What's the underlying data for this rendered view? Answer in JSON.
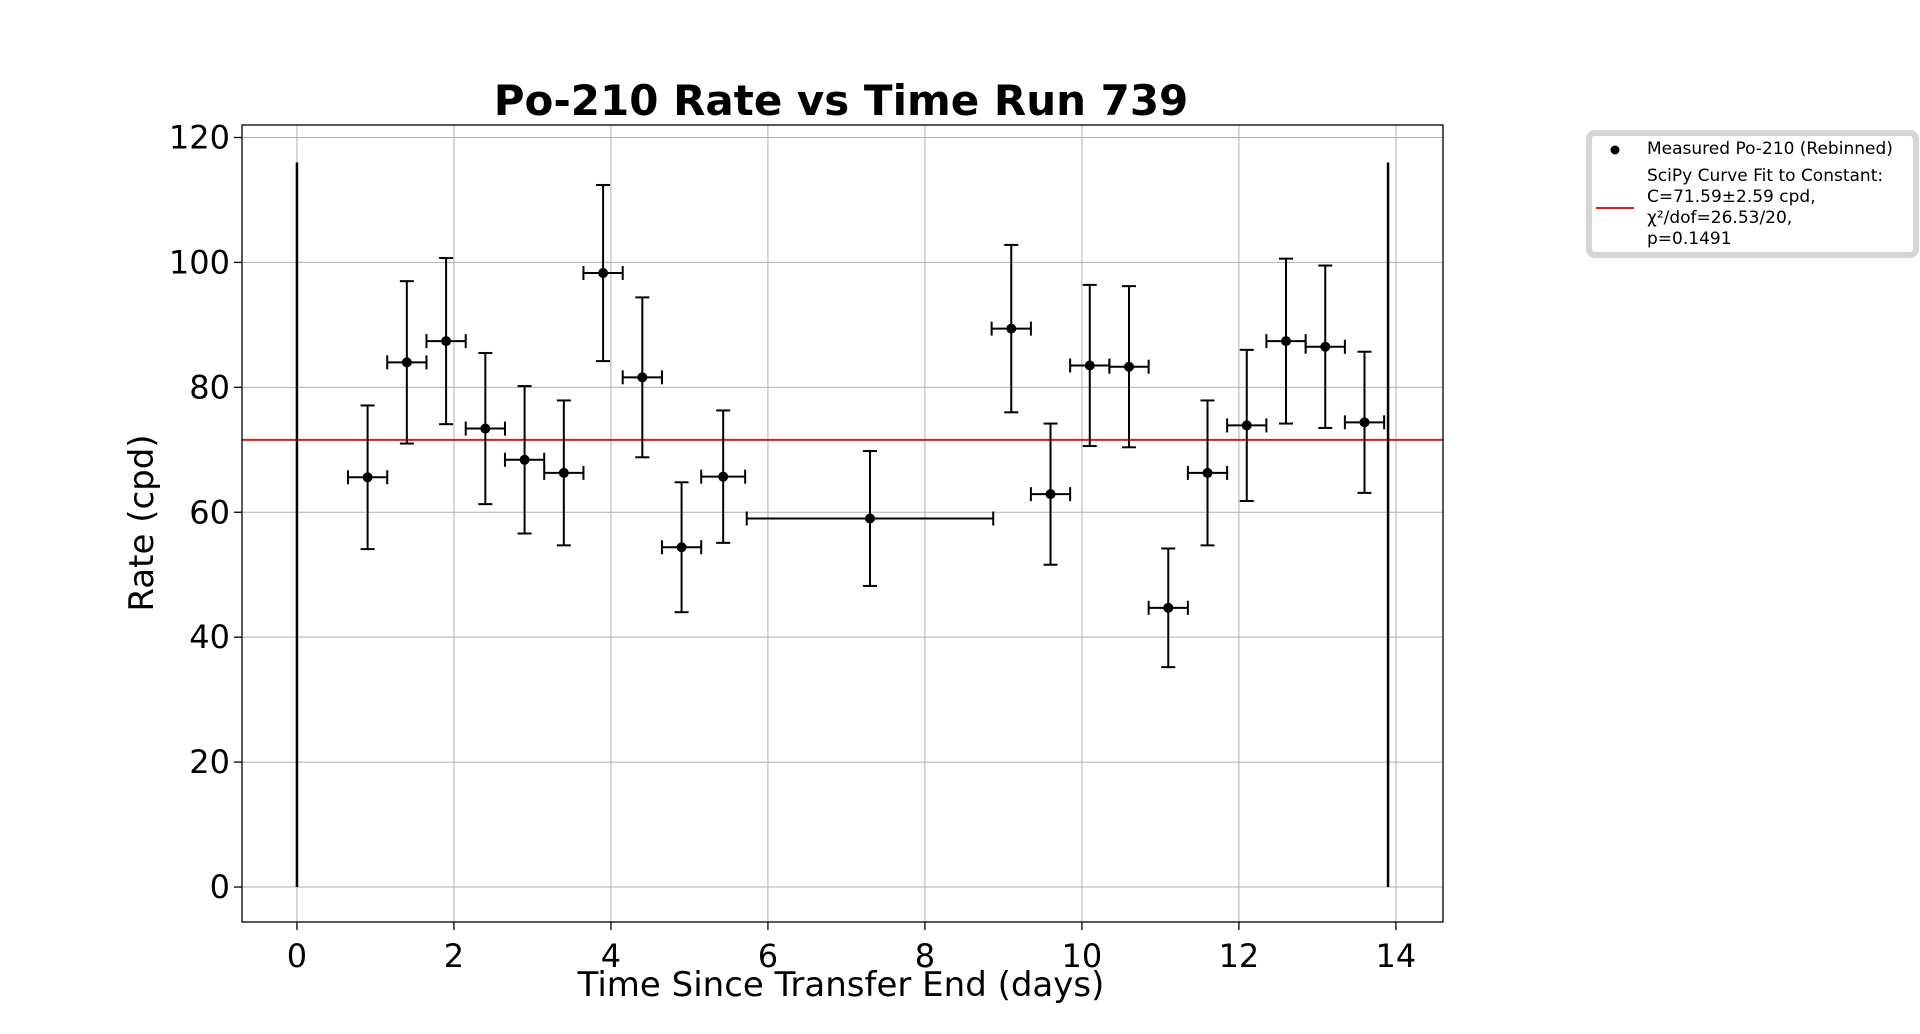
{
  "chart_data": {
    "type": "scatter",
    "title": "Po-210 Rate vs Time Run 739",
    "xlabel": "Time Since Transfer End (days)",
    "ylabel": "Rate (cpd)",
    "xlim": [
      -0.7,
      14.6
    ],
    "ylim": [
      -5.6,
      122
    ],
    "xticks": [
      0,
      2,
      4,
      6,
      8,
      10,
      12,
      14
    ],
    "yticks": [
      0,
      20,
      40,
      60,
      80,
      100,
      120
    ],
    "grid": true,
    "legend_position": "outside-top-right",
    "series": [
      {
        "name": "Measured Po-210 (Rebinned)",
        "kind": "errorbar",
        "color": "#000000",
        "points": [
          {
            "x": 0.9,
            "y": 65.6,
            "xerr": 0.25,
            "yerr": 11.5
          },
          {
            "x": 1.4,
            "y": 84.0,
            "xerr": 0.25,
            "yerr": 13.0
          },
          {
            "x": 1.9,
            "y": 87.4,
            "xerr": 0.25,
            "yerr": 13.3
          },
          {
            "x": 2.4,
            "y": 73.4,
            "xerr": 0.25,
            "yerr": 12.1
          },
          {
            "x": 2.9,
            "y": 68.4,
            "xerr": 0.25,
            "yerr": 11.8
          },
          {
            "x": 3.4,
            "y": 66.3,
            "xerr": 0.25,
            "yerr": 11.6
          },
          {
            "x": 3.9,
            "y": 98.3,
            "xerr": 0.25,
            "yerr": 14.1
          },
          {
            "x": 4.4,
            "y": 81.6,
            "xerr": 0.25,
            "yerr": 12.8
          },
          {
            "x": 4.9,
            "y": 54.4,
            "xerr": 0.25,
            "yerr": 10.4
          },
          {
            "x": 5.43,
            "y": 65.7,
            "xerr": 0.28,
            "yerr": 10.6
          },
          {
            "x": 7.3,
            "y": 59.0,
            "xerr": 1.57,
            "yerr": 10.8
          },
          {
            "x": 9.1,
            "y": 89.4,
            "xerr": 0.25,
            "yerr": 13.4
          },
          {
            "x": 9.6,
            "y": 62.9,
            "xerr": 0.25,
            "yerr": 11.3
          },
          {
            "x": 10.1,
            "y": 83.5,
            "xerr": 0.25,
            "yerr": 12.9
          },
          {
            "x": 10.6,
            "y": 83.3,
            "xerr": 0.25,
            "yerr": 12.9
          },
          {
            "x": 11.1,
            "y": 44.7,
            "xerr": 0.25,
            "yerr": 9.5
          },
          {
            "x": 11.6,
            "y": 66.3,
            "xerr": 0.25,
            "yerr": 11.6
          },
          {
            "x": 12.1,
            "y": 73.9,
            "xerr": 0.25,
            "yerr": 12.1
          },
          {
            "x": 12.6,
            "y": 87.4,
            "xerr": 0.25,
            "yerr": 13.2
          },
          {
            "x": 13.1,
            "y": 86.5,
            "xerr": 0.25,
            "yerr": 13.0
          },
          {
            "x": 13.6,
            "y": 74.4,
            "xerr": 0.25,
            "yerr": 11.3
          }
        ]
      },
      {
        "name": "SciPy Curve Fit to Constant:\nC=71.59±2.59 cpd,\nχ²/dof=26.53/20,\np=0.1491",
        "kind": "hline",
        "color": "#e31a1c",
        "y": 71.59
      }
    ],
    "vertical_lines": [
      {
        "x": 0.0,
        "ymin": 0,
        "ymax": 116,
        "color": "#000000"
      },
      {
        "x": 13.9,
        "ymin": 0,
        "ymax": 116,
        "color": "#000000"
      }
    ]
  }
}
